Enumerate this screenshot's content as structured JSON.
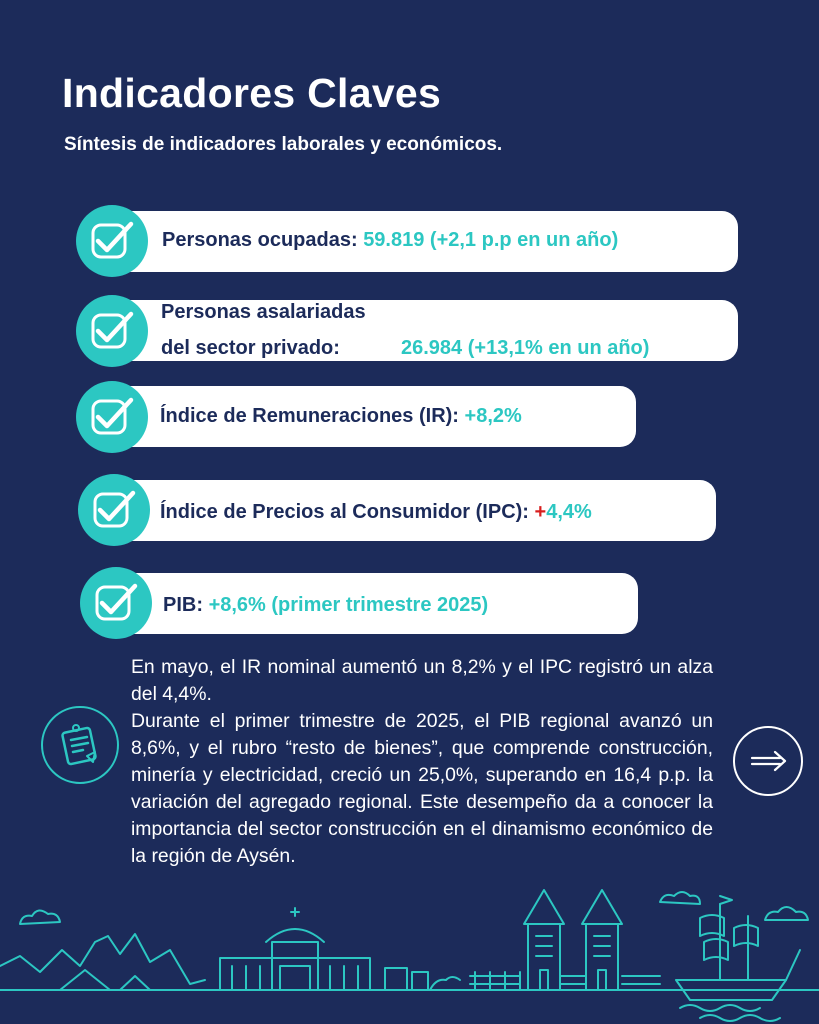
{
  "header": {
    "title": "Indicadores Claves",
    "subtitle": "Síntesis de indicadores laborales y económicos."
  },
  "indicators": [
    {
      "label": "Personas ocupadas:",
      "value": "59.819 (+2,1 p.p en un año)"
    },
    {
      "label_line1": "Personas asalariadas",
      "label_line2": "del sector privado:",
      "value": "26.984 (+13,1% en un año)"
    },
    {
      "label": "Índice de Remuneraciones (IR):",
      "value": "+8,2%"
    },
    {
      "label": "Índice de Precios al Consumidor (IPC):",
      "plus": "+",
      "value": "4,4%"
    },
    {
      "label": "PIB:",
      "value": "+8,6% (primer trimestre 2025)"
    }
  ],
  "body": {
    "paragraph1": "En mayo, el IR nominal aumentó un 8,2% y el IPC registró un alza del 4,4%.",
    "paragraph2": "Durante el primer trimestre de 2025, el PIB regional avanzó un 8,6%, y el rubro “resto de bienes”, que comprende construcción, minería y electricidad, creció un 25,0%, superando en 16,4 p.p. la variación del agregado regional. Este desempeño da a conocer la importancia del sector construcción en el dinamismo económico de la región de Aysén."
  },
  "icons": {
    "check": "check-icon",
    "notes": "notes-icon",
    "arrow": "arrow-right-icon"
  },
  "colors": {
    "background": "#1c2b5a",
    "accent": "#2cc7c2",
    "text_dark": "#1c2b5a",
    "plus_red": "#d81e1e"
  }
}
